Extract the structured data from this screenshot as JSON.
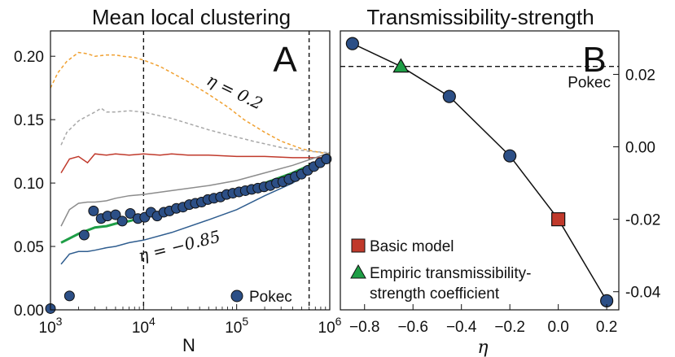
{
  "chart_data": [
    {
      "panel": "A",
      "type": "line",
      "title": "Mean local clustering",
      "xlabel": "N",
      "ylabel": "",
      "xscale": "log",
      "xlim": [
        1000,
        1000000
      ],
      "ylim": [
        0,
        0.22
      ],
      "x_ticks": [
        1000,
        10000,
        100000,
        1000000
      ],
      "x_tick_labels": [
        {
          "base": "10",
          "exp": "3"
        },
        {
          "base": "10",
          "exp": "4"
        },
        {
          "base": "10",
          "exp": "5"
        },
        {
          "base": "10",
          "exp": "6"
        }
      ],
      "y_ticks": [
        0,
        0.05,
        0.1,
        0.15,
        0.2
      ],
      "y_tick_labels": [
        "0.00",
        "0.05",
        "0.10",
        "0.15",
        "0.20"
      ],
      "vlines": [
        10000,
        600000
      ],
      "annotations": [
        {
          "text": "η = 0.2",
          "x": 90000,
          "y": 0.168,
          "angle": 26
        },
        {
          "text": "η = −0.85",
          "x": 25000,
          "y": 0.046,
          "angle": -14
        }
      ],
      "series": [
        {
          "color": "#f0a030",
          "dash": true,
          "x": [
            1000,
            1200,
            1500,
            2000,
            2500,
            3000,
            4000,
            5000,
            6000,
            8000,
            10000,
            15000,
            20000,
            30000,
            50000,
            80000,
            120000,
            200000,
            300000,
            500000,
            800000,
            1000000
          ],
          "y": [
            0.175,
            0.187,
            0.196,
            0.203,
            0.202,
            0.2,
            0.201,
            0.201,
            0.2,
            0.199,
            0.197,
            0.192,
            0.187,
            0.18,
            0.17,
            0.16,
            0.15,
            0.14,
            0.133,
            0.127,
            0.124,
            0.123
          ]
        },
        {
          "color": "#a8a8a8",
          "dash": true,
          "x": [
            1300,
            1500,
            2000,
            2500,
            3000,
            3500,
            4000,
            5000,
            7000,
            10000,
            15000,
            20000,
            30000,
            50000,
            80000,
            150000,
            300000,
            600000,
            1000000
          ],
          "y": [
            0.13,
            0.14,
            0.149,
            0.153,
            0.156,
            0.159,
            0.156,
            0.156,
            0.157,
            0.156,
            0.153,
            0.151,
            0.147,
            0.142,
            0.138,
            0.133,
            0.128,
            0.125,
            0.124
          ]
        },
        {
          "color": "#c0392b",
          "dash": false,
          "x": [
            1300,
            1600,
            2000,
            2500,
            3000,
            4000,
            5000,
            7000,
            10000,
            15000,
            20000,
            30000,
            50000,
            100000,
            200000,
            400000,
            600000,
            1000000
          ],
          "y": [
            0.108,
            0.119,
            0.121,
            0.116,
            0.123,
            0.122,
            0.123,
            0.122,
            0.123,
            0.122,
            0.123,
            0.122,
            0.122,
            0.121,
            0.121,
            0.12,
            0.12,
            0.12
          ]
        },
        {
          "color": "#8c8c8c",
          "dash": false,
          "x": [
            1300,
            1600,
            2000,
            2500,
            3000,
            4000,
            5000,
            7000,
            10000,
            20000,
            50000,
            100000,
            200000,
            400000,
            700000,
            1000000
          ],
          "y": [
            0.066,
            0.079,
            0.084,
            0.085,
            0.085,
            0.086,
            0.088,
            0.09,
            0.091,
            0.094,
            0.098,
            0.102,
            0.108,
            0.114,
            0.12,
            0.124
          ]
        },
        {
          "color": "#1e9e46",
          "dash": false,
          "width": 3,
          "x": [
            1300,
            2000,
            3000,
            4000,
            5000,
            7000,
            10000,
            20000,
            50000,
            100000,
            200000,
            400000,
            700000,
            1000000
          ],
          "y": [
            0.053,
            0.06,
            0.065,
            0.066,
            0.068,
            0.07,
            0.073,
            0.078,
            0.087,
            0.093,
            0.1,
            0.108,
            0.116,
            0.122
          ]
        },
        {
          "color": "#2f5d8f",
          "dash": false,
          "x": [
            1300,
            1600,
            2000,
            2500,
            3000,
            4000,
            5000,
            7000,
            10000,
            20000,
            50000,
            100000,
            200000,
            400000,
            700000,
            1000000
          ],
          "y": [
            0.036,
            0.044,
            0.046,
            0.046,
            0.047,
            0.049,
            0.05,
            0.053,
            0.055,
            0.061,
            0.071,
            0.079,
            0.09,
            0.1,
            0.112,
            0.121
          ]
        }
      ],
      "scatter": {
        "name": "Pokec",
        "color": "#2c4f86",
        "x": [
          1000,
          1600,
          2300,
          2900,
          3500,
          4100,
          5000,
          5900,
          7200,
          8700,
          10300,
          12000,
          14000,
          16500,
          19000,
          22500,
          26500,
          31000,
          36000,
          42000,
          49000,
          57000,
          67000,
          78000,
          91000,
          106000,
          124000,
          145000,
          169000,
          197000,
          230000,
          268000,
          313000,
          365000,
          426000,
          497000,
          580000,
          676000,
          788000,
          920000
        ],
        "y": [
          0.001,
          0.011,
          0.059,
          0.078,
          0.072,
          0.074,
          0.075,
          0.07,
          0.076,
          0.072,
          0.073,
          0.077,
          0.074,
          0.077,
          0.078,
          0.08,
          0.081,
          0.083,
          0.084,
          0.085,
          0.087,
          0.088,
          0.089,
          0.091,
          0.092,
          0.093,
          0.094,
          0.095,
          0.096,
          0.097,
          0.098,
          0.1,
          0.101,
          0.103,
          0.105,
          0.107,
          0.11,
          0.113,
          0.116,
          0.119
        ]
      },
      "legend": {
        "position": "bottom-right",
        "entries": [
          "Pokec"
        ]
      }
    },
    {
      "panel": "B",
      "type": "line",
      "title": "Transmissibility-strength",
      "xlabel": "η",
      "ylabel": "",
      "xlim": [
        -0.9,
        0.25
      ],
      "ylim": [
        -0.045,
        0.032
      ],
      "y_axis_side": "right",
      "x_ticks": [
        -0.8,
        -0.6,
        -0.4,
        -0.2,
        0.0,
        0.2
      ],
      "x_tick_labels": [
        "−0.8",
        "−0.6",
        "−0.4",
        "−0.2",
        "0.0",
        "0.2"
      ],
      "y_ticks": [
        -0.04,
        -0.02,
        0.0,
        0.02
      ],
      "y_tick_labels": [
        "-0.04",
        "-0.02",
        "0.00",
        "0.02"
      ],
      "hline": {
        "y": 0.0222,
        "label": "Pokec"
      },
      "series": [
        {
          "color": "#111111",
          "x": [
            -0.85,
            -0.65,
            -0.45,
            -0.2,
            0.0,
            0.2
          ],
          "y": [
            0.0285,
            0.0222,
            0.0139,
            -0.0025,
            -0.02,
            -0.0425
          ]
        }
      ],
      "markers": [
        {
          "x": -0.85,
          "y": 0.0285,
          "shape": "circle",
          "color": "#2c4f86"
        },
        {
          "x": -0.45,
          "y": 0.0139,
          "shape": "circle",
          "color": "#2c4f86"
        },
        {
          "x": -0.2,
          "y": -0.0025,
          "shape": "circle",
          "color": "#2c4f86"
        },
        {
          "x": 0.2,
          "y": -0.0425,
          "shape": "circle",
          "color": "#2c4f86"
        },
        {
          "x": 0.0,
          "y": -0.02,
          "shape": "square",
          "color": "#c0392b"
        },
        {
          "x": -0.65,
          "y": 0.0222,
          "shape": "triangle",
          "color": "#1e9e46"
        }
      ],
      "legend": {
        "position": "bottom-left",
        "entries": [
          {
            "label": "Basic model",
            "shape": "square",
            "color": "#c0392b"
          },
          {
            "label": "Empiric transmissibility-\nstrength coefficient",
            "shape": "triangle",
            "color": "#1e9e46"
          }
        ]
      }
    }
  ]
}
